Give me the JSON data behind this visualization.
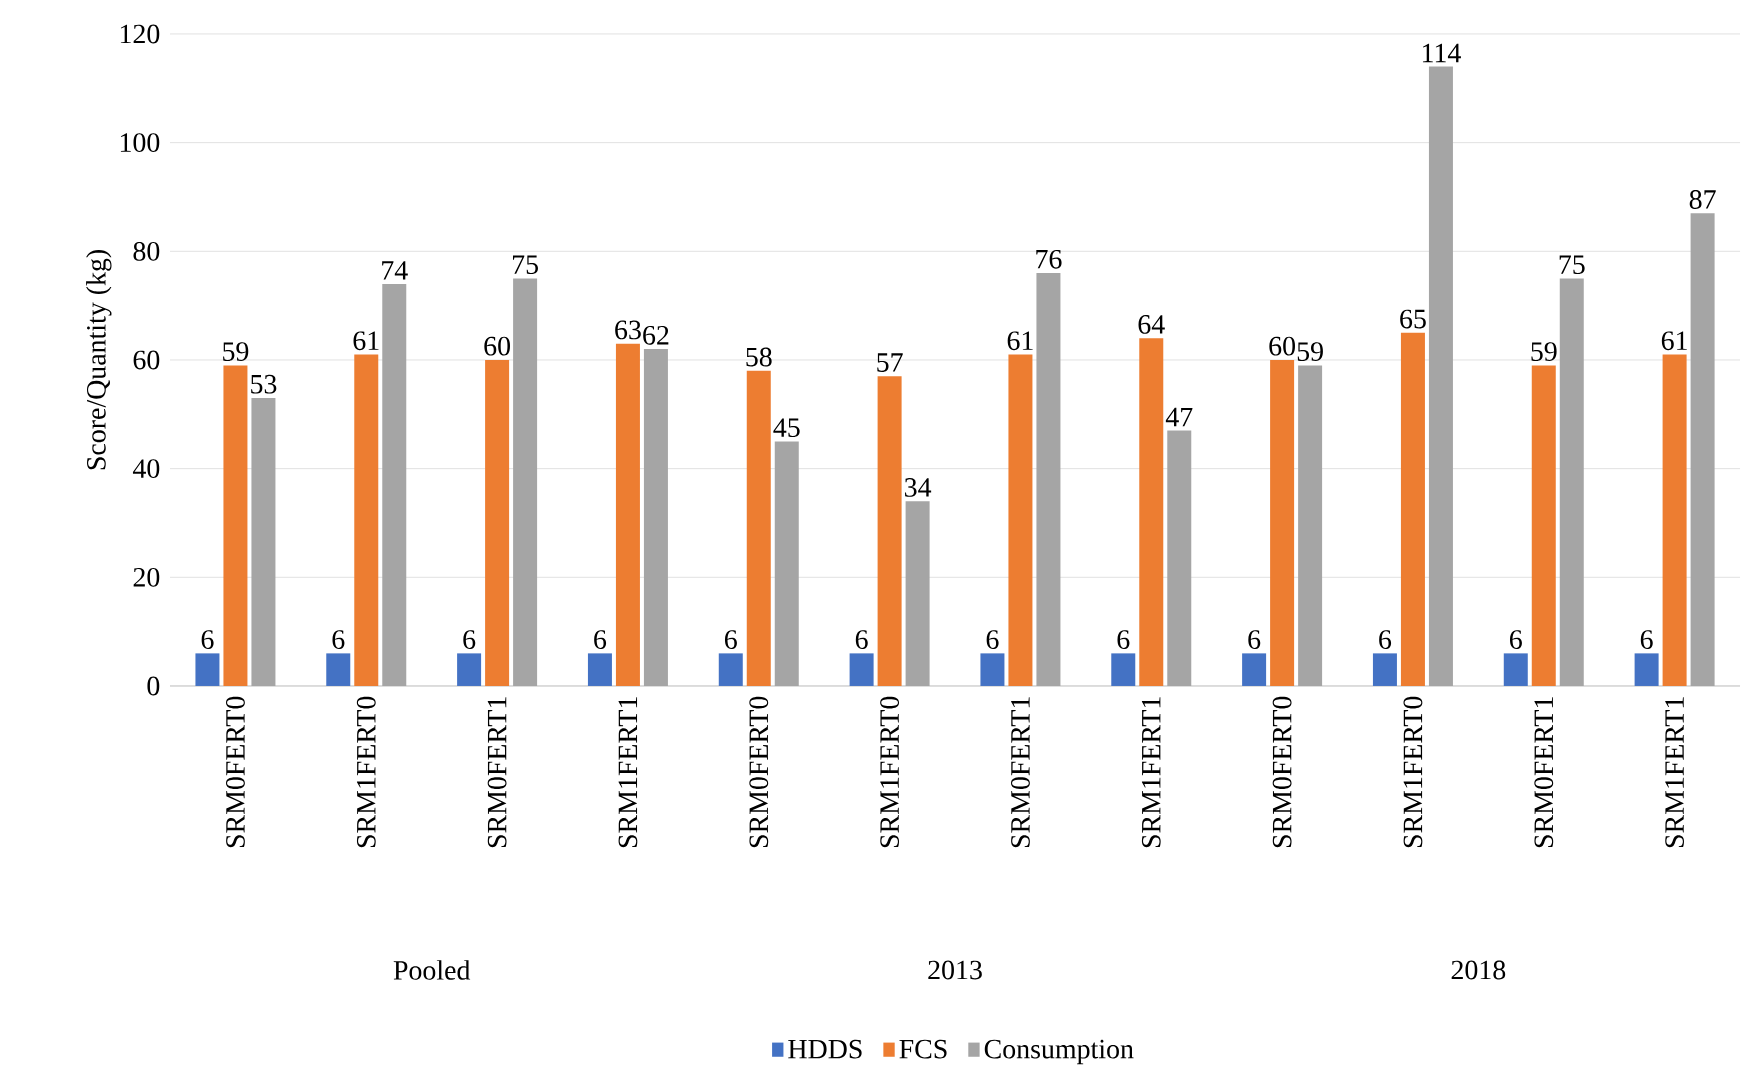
{
  "chart_data": {
    "type": "bar",
    "ylabel": "Score/Quantity (kg)",
    "categories": [
      "SRM0FERT0",
      "SRM1FERT0",
      "SRM0FERT1",
      "SRM1FERT1",
      "SRM0FERT0",
      "SRM1FERT0",
      "SRM0FERT1",
      "SRM1FERT1",
      "SRM0FERT0",
      "SRM1FERT0",
      "SRM0FERT1",
      "SRM1FERT1"
    ],
    "series": [
      {
        "name": "HDDS",
        "color": "#4472c4",
        "values": [
          6,
          6,
          6,
          6,
          6,
          6,
          6,
          6,
          6,
          6,
          6,
          6
        ]
      },
      {
        "name": "FCS",
        "color": "#ed7d31",
        "values": [
          59,
          61,
          60,
          63,
          58,
          57,
          61,
          64,
          60,
          65,
          59,
          61
        ]
      },
      {
        "name": "Consumption",
        "color": "#a5a5a5",
        "values": [
          53,
          74,
          75,
          62,
          45,
          34,
          76,
          47,
          59,
          114,
          75,
          87
        ]
      }
    ],
    "annotations": [
      "Pooled",
      "2013",
      "2018"
    ],
    "ylim": [
      0,
      120
    ],
    "yticks": [
      0,
      20,
      40,
      60,
      80,
      100,
      120
    ],
    "grid": "y",
    "legend": "bottom",
    "data_labels": true
  }
}
